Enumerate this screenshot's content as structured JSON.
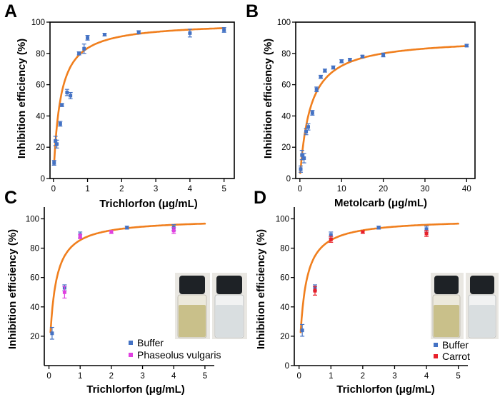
{
  "colors": {
    "fit": "#F07F1E",
    "buffer": "#4472C4",
    "phaseolus": "#E040E0",
    "carrot": "#E8202A",
    "vial_liquid_sample": "#C9C08A",
    "vial_liquid_clear": "#D9DEE0",
    "vial_cap": "#1E2226"
  },
  "chart_data": [
    {
      "panel": "A",
      "type": "scatter",
      "xlabel": "Trichlorfon (μg/mL)",
      "ylabel": "Inhibition efficiency (%)",
      "xlim": [
        -0.1,
        5.3
      ],
      "ylim": [
        0,
        100
      ],
      "xticks": [
        0,
        1,
        2,
        3,
        4,
        5
      ],
      "yticks": [
        0,
        20,
        40,
        60,
        80,
        100
      ],
      "fit": {
        "ymax": 100,
        "k": 0.2
      },
      "series": [
        {
          "name": "Buffer",
          "color_key": "buffer",
          "points": [
            {
              "x": 0.02,
              "y": 10,
              "err": 1.5
            },
            {
              "x": 0.06,
              "y": 24,
              "err": 3
            },
            {
              "x": 0.1,
              "y": 22,
              "err": 2.5
            },
            {
              "x": 0.2,
              "y": 35,
              "err": 1.5
            },
            {
              "x": 0.25,
              "y": 47,
              "err": 1
            },
            {
              "x": 0.4,
              "y": 55,
              "err": 2
            },
            {
              "x": 0.5,
              "y": 53,
              "err": 2
            },
            {
              "x": 0.75,
              "y": 80,
              "err": 1
            },
            {
              "x": 0.9,
              "y": 83,
              "err": 3
            },
            {
              "x": 1.0,
              "y": 90,
              "err": 1.5
            },
            {
              "x": 1.5,
              "y": 92,
              "err": 0.8
            },
            {
              "x": 2.5,
              "y": 93.5,
              "err": 1
            },
            {
              "x": 4.0,
              "y": 93,
              "err": 2.5
            },
            {
              "x": 5.0,
              "y": 95,
              "err": 1.5
            }
          ]
        }
      ]
    },
    {
      "panel": "B",
      "type": "scatter",
      "xlabel": "Metolcarb (μg/mL)",
      "ylabel": "Inhibition efficiency (%)",
      "xlim": [
        -1,
        42
      ],
      "ylim": [
        0,
        100
      ],
      "xticks": [
        0,
        10,
        20,
        30,
        40
      ],
      "yticks": [
        0,
        20,
        40,
        60,
        80,
        100
      ],
      "fit": {
        "ymax": 90,
        "k": 2.5
      },
      "series": [
        {
          "name": "Buffer",
          "color_key": "buffer",
          "points": [
            {
              "x": 0.2,
              "y": 6,
              "err": 2
            },
            {
              "x": 0.5,
              "y": 15,
              "err": 3
            },
            {
              "x": 1,
              "y": 13,
              "err": 3
            },
            {
              "x": 1.5,
              "y": 30,
              "err": 2
            },
            {
              "x": 2,
              "y": 33,
              "err": 2
            },
            {
              "x": 3,
              "y": 42,
              "err": 1.5
            },
            {
              "x": 4,
              "y": 57,
              "err": 1.5
            },
            {
              "x": 5,
              "y": 65,
              "err": 1
            },
            {
              "x": 6,
              "y": 69,
              "err": 1
            },
            {
              "x": 8,
              "y": 71,
              "err": 1
            },
            {
              "x": 10,
              "y": 75,
              "err": 1
            },
            {
              "x": 12,
              "y": 76,
              "err": 0.8
            },
            {
              "x": 15,
              "y": 78,
              "err": 0.8
            },
            {
              "x": 20,
              "y": 79,
              "err": 1.2
            },
            {
              "x": 40,
              "y": 85,
              "err": 0.8
            }
          ]
        }
      ]
    },
    {
      "panel": "C",
      "type": "scatter",
      "xlabel": "Trichlorfon (μg/mL)",
      "ylabel": "Inhibition efficiency (%)",
      "xlim": [
        -0.15,
        5.3
      ],
      "ylim": [
        0,
        108
      ],
      "xticks": [
        0,
        1,
        2,
        3,
        4,
        5
      ],
      "yticks": [
        20,
        40,
        60,
        80,
        100
      ],
      "fit": {
        "ymax": 100,
        "k": 0.17
      },
      "legend_position": "bottom-right",
      "series": [
        {
          "name": "Buffer",
          "color_key": "buffer",
          "points": [
            {
              "x": 0.1,
              "y": 22,
              "err": 4
            },
            {
              "x": 0.5,
              "y": 53,
              "err": 2
            },
            {
              "x": 1.0,
              "y": 89,
              "err": 2
            },
            {
              "x": 2.5,
              "y": 94,
              "err": 1
            },
            {
              "x": 4.0,
              "y": 94,
              "err": 2
            }
          ]
        },
        {
          "name": "Phaseolus vulgaris",
          "color_key": "phaseolus",
          "points": [
            {
              "x": 0.5,
              "y": 50,
              "err": 4
            },
            {
              "x": 1.0,
              "y": 88,
              "err": 1.5
            },
            {
              "x": 2.0,
              "y": 91,
              "err": 1
            },
            {
              "x": 4.0,
              "y": 92,
              "err": 2
            }
          ]
        }
      ]
    },
    {
      "panel": "D",
      "type": "scatter",
      "xlabel": "Trichlorfon (μg/mL)",
      "ylabel": "Inhibition efficiency (%)",
      "xlim": [
        -0.15,
        5.3
      ],
      "ylim": [
        0,
        108
      ],
      "xticks": [
        0,
        1,
        2,
        3,
        4,
        5
      ],
      "yticks": [
        0,
        20,
        40,
        60,
        80,
        100
      ],
      "fit": {
        "ymax": 100,
        "k": 0.17
      },
      "legend_position": "bottom-right",
      "series": [
        {
          "name": "Buffer",
          "color_key": "buffer",
          "points": [
            {
              "x": 0.1,
              "y": 24,
              "err": 4
            },
            {
              "x": 0.5,
              "y": 53,
              "err": 2
            },
            {
              "x": 1.0,
              "y": 89,
              "err": 2
            },
            {
              "x": 2.5,
              "y": 94,
              "err": 1
            },
            {
              "x": 4.0,
              "y": 93,
              "err": 2
            }
          ]
        },
        {
          "name": "Carrot",
          "color_key": "carrot",
          "points": [
            {
              "x": 0.5,
              "y": 51,
              "err": 3
            },
            {
              "x": 1.0,
              "y": 86,
              "err": 2
            },
            {
              "x": 2.0,
              "y": 91,
              "err": 0.8
            },
            {
              "x": 4.0,
              "y": 90,
              "err": 2
            }
          ]
        }
      ]
    }
  ]
}
